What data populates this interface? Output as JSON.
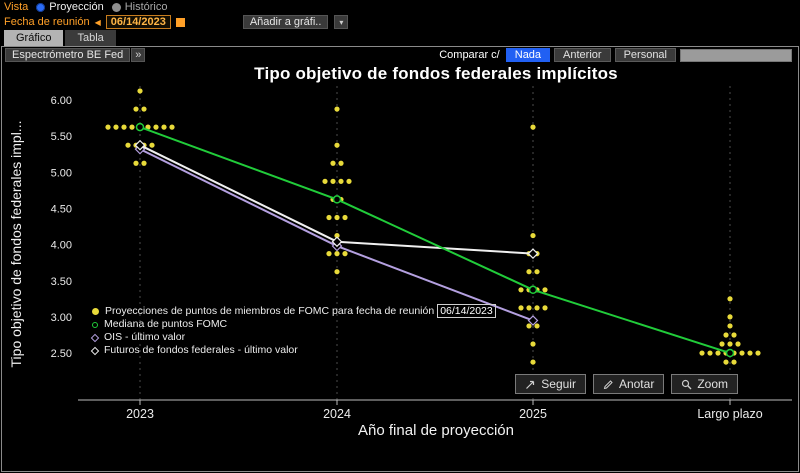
{
  "topbar": {
    "vista_label": "Vista",
    "view_options": [
      {
        "label": "Proyección",
        "selected": true
      },
      {
        "label": "Histórico",
        "selected": false
      }
    ],
    "fecha_label": "Fecha de reunión",
    "prev_icon": "◀",
    "fecha_value": "06/14/2023",
    "anadir_button": "Añadir a gráfi..",
    "anadir_caret": "▾"
  },
  "tabs": [
    {
      "label": "Gráfico",
      "active": true
    },
    {
      "label": "Tabla",
      "active": false
    }
  ],
  "toolbar": {
    "source_button": "Espectrómetro BE Fed",
    "source_expand": "»",
    "compare_label": "Comparar c/",
    "compare_options": [
      {
        "label": "Nada",
        "selected": true
      },
      {
        "label": "Anterior",
        "selected": false
      },
      {
        "label": "Personal",
        "selected": false
      }
    ]
  },
  "legend": {
    "dots_prefix": "Proyecciones de puntos de miembros de FOMC para fecha de reunión",
    "dots_date": "06/14/2023",
    "median_label": "Mediana de puntos FOMC",
    "ois_label": "OIS - último valor",
    "futures_label": "Futuros de fondos federales - último valor"
  },
  "actions": [
    {
      "label": "Seguir"
    },
    {
      "label": "Anotar"
    },
    {
      "label": "Zoom"
    }
  ],
  "colors": {
    "accent_orange": "#ffa028",
    "selected_blue": "#2160f3",
    "dot_yellow": "#e8da3a",
    "median_green": "#21cc3a",
    "ois_purple": "#b4a0e0",
    "futures_white": "#f0f0f0"
  },
  "chart_data": {
    "type": "scatter",
    "title": "Tipo objetivo de fondos federales implícitos",
    "xlabel": "Año final de proyección",
    "ylabel": "Tipo objetivo de fondos federales impl...",
    "categories": [
      "2023",
      "2024",
      "2025",
      "Largo plazo"
    ],
    "ylim": [
      2.25,
      6.25
    ],
    "yticks": [
      2.5,
      3.0,
      3.5,
      4.0,
      4.5,
      5.0,
      5.5,
      6.0
    ],
    "grid": "vertical-dashed",
    "legend_position": "inside-bottom-left",
    "dot_series": {
      "name": "Proyecciones de puntos de miembros de FOMC para fecha de reunión 06/14/2023",
      "color": "#e8da3a",
      "by_category": {
        "2023": [
          5.125,
          5.125,
          5.375,
          5.375,
          5.375,
          5.375,
          5.625,
          5.625,
          5.625,
          5.625,
          5.625,
          5.625,
          5.625,
          5.625,
          5.625,
          5.875,
          5.875,
          6.125
        ],
        "2024": [
          3.625,
          3.875,
          3.875,
          3.875,
          4.125,
          4.375,
          4.375,
          4.375,
          4.625,
          4.625,
          4.875,
          4.875,
          4.875,
          4.875,
          5.125,
          5.125,
          5.375,
          5.875
        ],
        "2025": [
          2.375,
          2.625,
          2.875,
          2.875,
          3.125,
          3.125,
          3.125,
          3.125,
          3.375,
          3.375,
          3.375,
          3.375,
          3.625,
          3.625,
          3.875,
          3.875,
          4.125,
          5.625
        ],
        "Largo plazo": [
          2.375,
          2.375,
          2.5,
          2.5,
          2.5,
          2.5,
          2.5,
          2.5,
          2.5,
          2.5,
          2.625,
          2.625,
          2.625,
          2.75,
          2.75,
          2.875,
          3.0,
          3.25
        ]
      }
    },
    "series": [
      {
        "name": "Mediana de puntos FOMC",
        "color": "#21cc3a",
        "marker": "circle",
        "values": [
          5.625,
          4.625,
          3.375,
          2.5
        ]
      },
      {
        "name": "OIS - último valor",
        "color": "#b4a0e0",
        "marker": "diamond",
        "values": [
          5.32,
          3.98,
          2.95,
          null
        ]
      },
      {
        "name": "Futuros de fondos federales - último valor",
        "color": "#f0f0f0",
        "marker": "diamond",
        "values": [
          5.375,
          4.04,
          3.875,
          null
        ]
      }
    ]
  }
}
